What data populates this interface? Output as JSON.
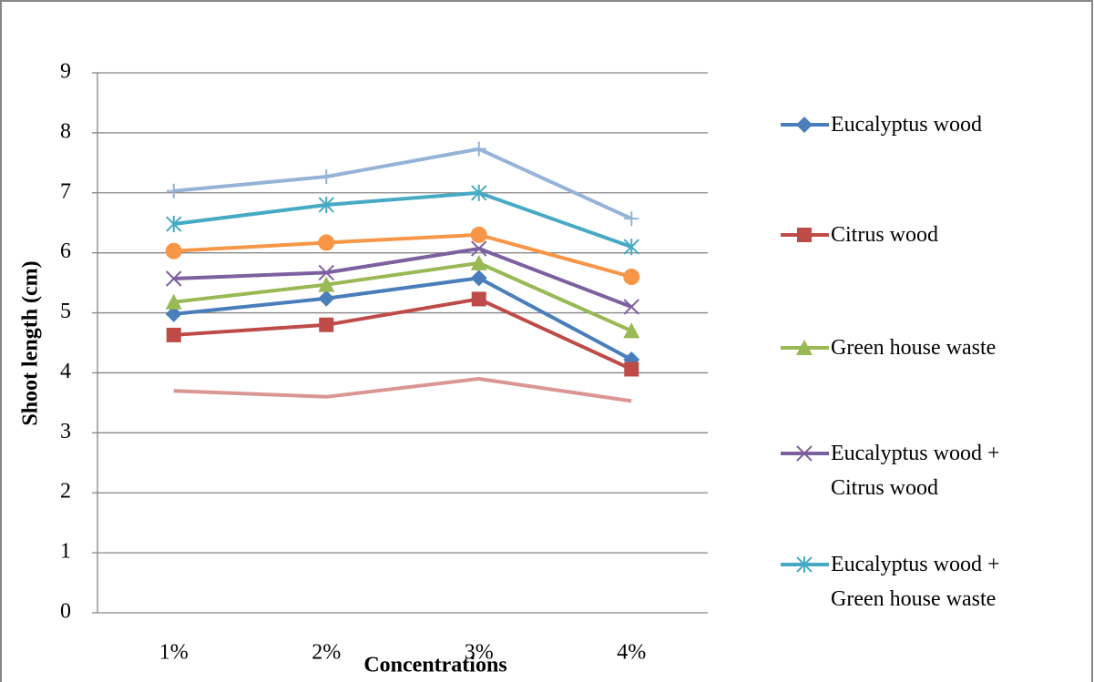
{
  "chart_data": {
    "type": "line",
    "x_label": "Concentrations",
    "y_label": "Shoot length (cm)",
    "categories": [
      "1%",
      "2%",
      "3%",
      "4%"
    ],
    "ylim": [
      0,
      9
    ],
    "yticks": [
      0,
      1,
      2,
      3,
      4,
      5,
      6,
      7,
      8,
      9
    ],
    "grid": true,
    "legend": "right",
    "series": [
      {
        "name": "Eucalyptus wood",
        "color": "#4a7ebb",
        "marker": "diamond",
        "values": [
          4.98,
          5.24,
          5.58,
          4.22
        ]
      },
      {
        "name": "Citrus wood",
        "color": "#be4b48",
        "marker": "square",
        "values": [
          4.63,
          4.8,
          5.23,
          4.06
        ]
      },
      {
        "name": "Green house waste",
        "color": "#98b954",
        "marker": "triangle",
        "values": [
          5.18,
          5.47,
          5.83,
          4.7
        ]
      },
      {
        "name": "Eucalyptus wood + Citrus wood",
        "color": "#7d60a0",
        "marker": "x",
        "values": [
          5.57,
          5.67,
          6.07,
          5.1
        ]
      },
      {
        "name": "Eucalyptus wood + Green house waste",
        "color": "#46aac5",
        "marker": "star",
        "values": [
          6.48,
          6.8,
          7.0,
          6.1
        ]
      },
      {
        "color": "#f79646",
        "marker": "circle",
        "values": [
          6.03,
          6.17,
          6.3,
          5.6
        ]
      },
      {
        "color": "#95b3d7",
        "marker": "plus",
        "values": [
          7.03,
          7.27,
          7.73,
          6.57
        ]
      },
      {
        "color": "#d99694",
        "values": [
          3.7,
          3.6,
          3.9,
          3.53
        ]
      }
    ]
  }
}
